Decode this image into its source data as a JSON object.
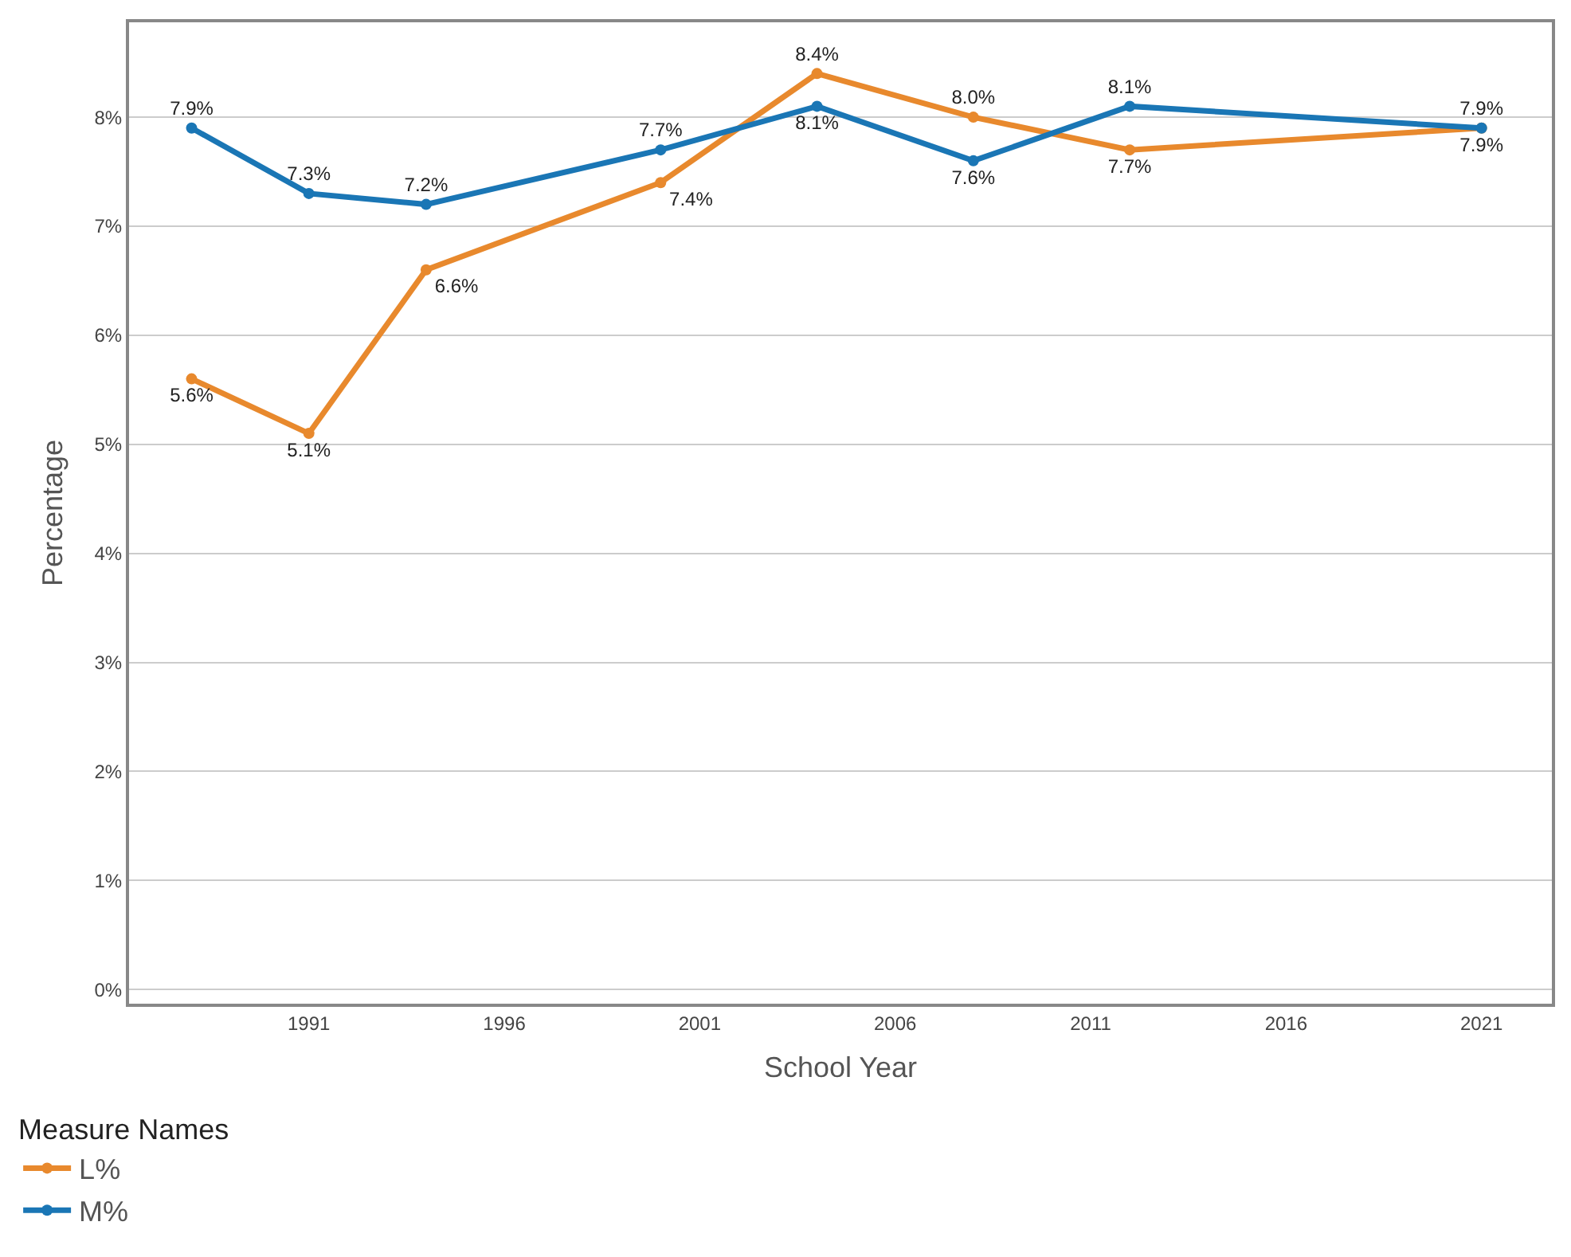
{
  "chart_data": {
    "type": "line",
    "xlabel": "School Year",
    "ylabel": "Percentage",
    "legend_title": "Measure Names",
    "x": [
      1988,
      1991,
      1994,
      2000,
      2004,
      2008,
      2012,
      2021
    ],
    "series": [
      {
        "name": "L%",
        "color": "#e8892d",
        "values": [
          5.6,
          5.1,
          6.6,
          7.4,
          8.4,
          8.0,
          7.7,
          7.9
        ],
        "value_labels": [
          "5.6%",
          "5.1%",
          "6.6%",
          "7.4%",
          "8.4%",
          "8.0%",
          "7.7%",
          "7.9%"
        ]
      },
      {
        "name": "M%",
        "color": "#1a76b5",
        "values": [
          7.9,
          7.3,
          7.2,
          7.7,
          8.1,
          7.6,
          8.1,
          7.9
        ],
        "value_labels": [
          "7.9%",
          "7.3%",
          "7.2%",
          "7.7%",
          "8.1%",
          "7.6%",
          "8.1%",
          "7.9%"
        ]
      }
    ],
    "xlim": [
      1986.4,
      2022.8
    ],
    "xticks": [
      1991,
      1996,
      2001,
      2006,
      2011,
      2016,
      2021
    ],
    "ylim": [
      -0.13,
      8.87
    ],
    "yticks": [
      {
        "value": 0,
        "label": "0%"
      },
      {
        "value": 1,
        "label": "1%"
      },
      {
        "value": 2,
        "label": "2%"
      },
      {
        "value": 3,
        "label": "3%"
      },
      {
        "value": 4,
        "label": "4%"
      },
      {
        "value": 5,
        "label": "5%"
      },
      {
        "value": 6,
        "label": "6%"
      },
      {
        "value": 7,
        "label": "7%"
      },
      {
        "value": 8,
        "label": "8%"
      }
    ],
    "grid": "y",
    "legend": "bottom left",
    "marker": "circle",
    "line_style": "solid"
  }
}
